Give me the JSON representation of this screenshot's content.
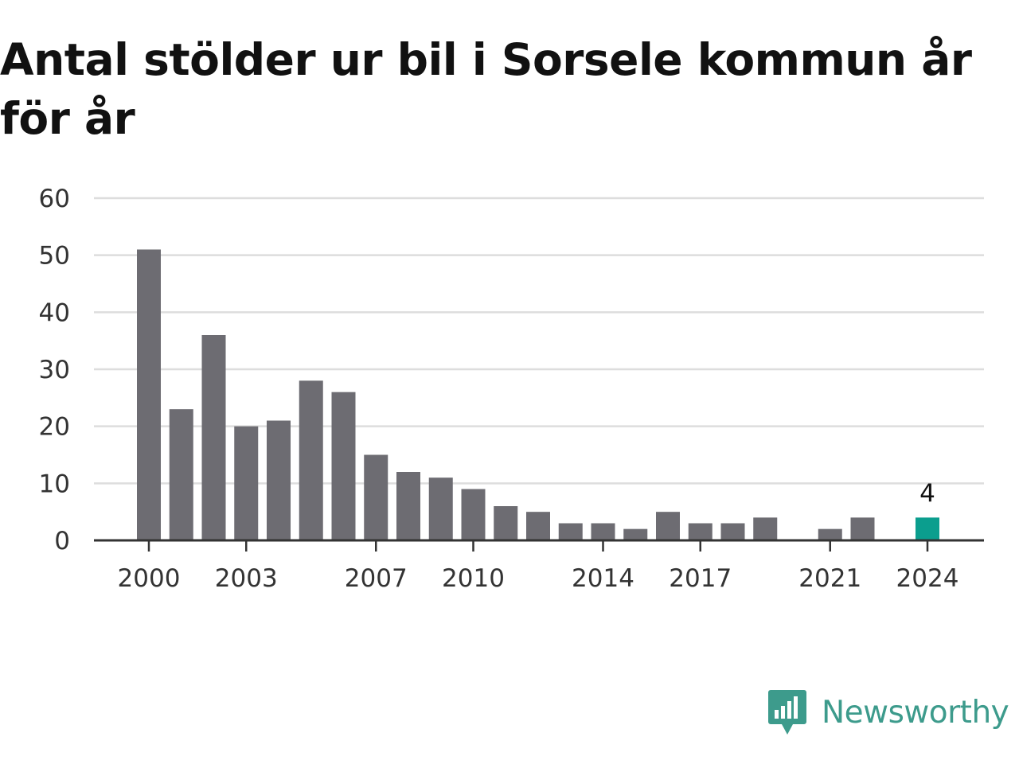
{
  "title": "Antal stölder ur bil i Sorsele kommun år för år",
  "logo": {
    "text": "Newsworthy",
    "icon": "bar-chart-speech-bubble-icon",
    "color": "#3d9b8c"
  },
  "colors": {
    "bar": "#6d6c72",
    "highlight": "#0b9e8e",
    "grid": "#dddddd",
    "axis": "#333333"
  },
  "chart_data": {
    "type": "bar",
    "title": "Antal stölder ur bil i Sorsele kommun år för år",
    "xlabel": "",
    "ylabel": "",
    "x": [
      2000,
      2001,
      2002,
      2003,
      2004,
      2005,
      2006,
      2007,
      2008,
      2009,
      2010,
      2011,
      2012,
      2013,
      2014,
      2015,
      2016,
      2017,
      2018,
      2019,
      2020,
      2021,
      2022,
      2023,
      2024
    ],
    "values": [
      51,
      23,
      36,
      20,
      21,
      28,
      26,
      15,
      12,
      11,
      9,
      6,
      5,
      3,
      3,
      2,
      5,
      3,
      3,
      4,
      0,
      2,
      4,
      0,
      4
    ],
    "x_ticks": [
      2000,
      2003,
      2007,
      2010,
      2014,
      2017,
      2021,
      2024
    ],
    "y_ticks": [
      0,
      10,
      20,
      30,
      40,
      50,
      60
    ],
    "ylim": [
      0,
      60
    ],
    "grid": true,
    "highlight": {
      "x": 2024,
      "value": 4,
      "label": "4"
    }
  }
}
